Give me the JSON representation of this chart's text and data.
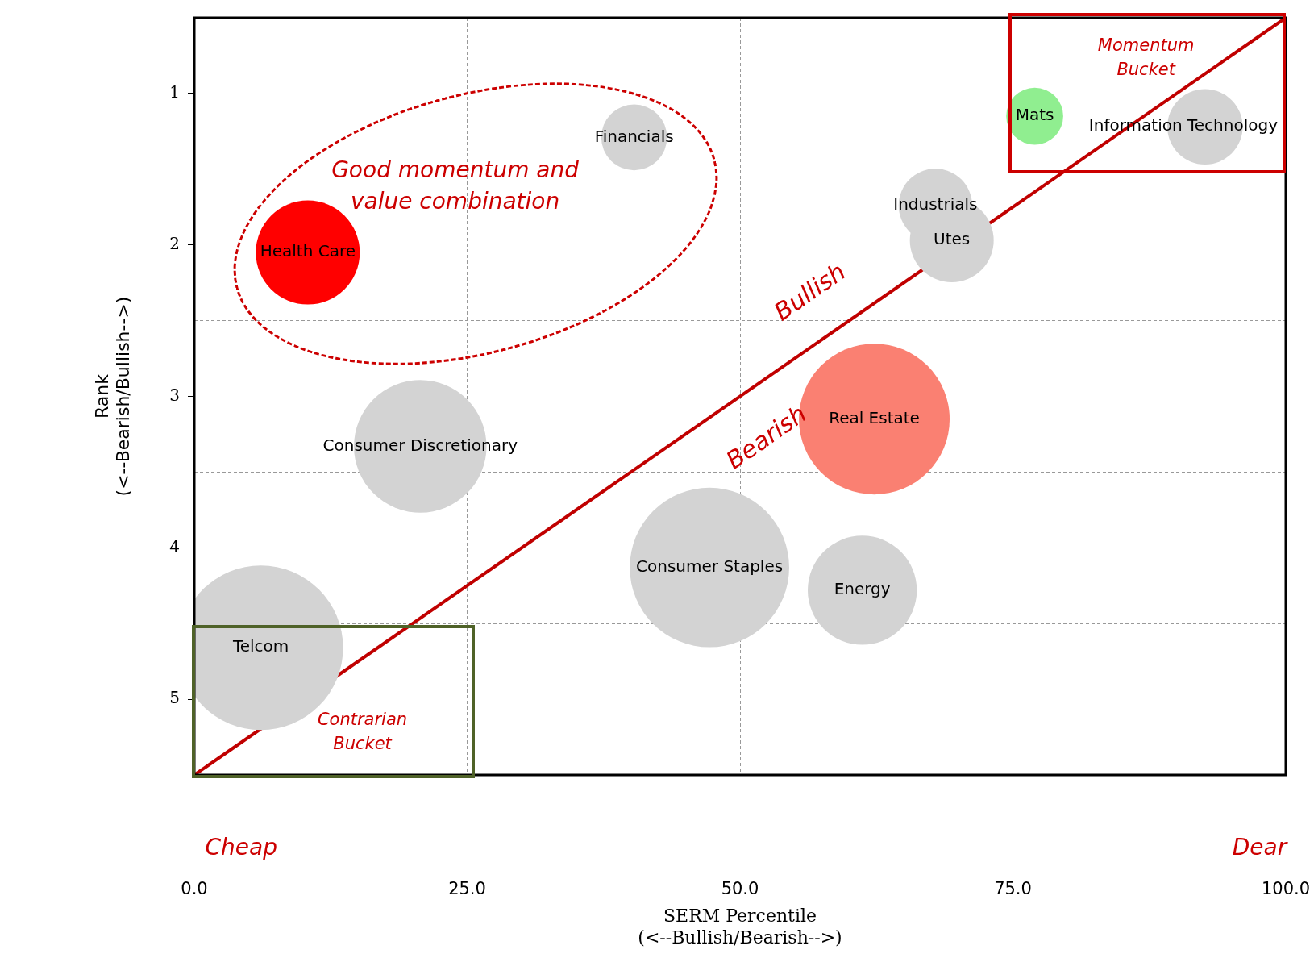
{
  "chart_data": {
    "type": "bubble",
    "xlabel": "SERM Percentile\n(<--Bullish/Bearish-->)",
    "ylabel": "Rank\n(<--Bearish/Bullish-->)",
    "xlim": [
      0,
      100
    ],
    "xticks": [
      {
        "value": 0,
        "label": "0.0"
      },
      {
        "value": 25,
        "label": "25.0"
      },
      {
        "value": 50,
        "label": "50.0"
      },
      {
        "value": 75,
        "label": "75.0"
      },
      {
        "value": 100,
        "label": "100.0"
      }
    ],
    "ylim": [
      5.5,
      0.5
    ],
    "yticks": [
      1,
      {
        "value": 1.5,
        "label": null
      },
      2,
      {
        "value": 2.5,
        "label": null
      },
      3,
      {
        "value": 3.5,
        "label": null
      },
      4,
      {
        "value": 4.5,
        "label": null
      },
      5
    ],
    "grid": true,
    "legend": false,
    "series": [
      {
        "name": "Financials",
        "color": "#d3d3d3",
        "x": [
          40.3
        ],
        "values": [
          1.29
        ],
        "sizes": [
          0.16
        ]
      },
      {
        "name": "Health Care",
        "color": "#ff0000",
        "x": [
          10.4
        ],
        "values": [
          2.05
        ],
        "sizes": [
          0.4
        ]
      },
      {
        "name": "Mats",
        "color": "#90ee90",
        "x": [
          77.0
        ],
        "values": [
          1.15
        ],
        "sizes": [
          0.12
        ]
      },
      {
        "name": "Information Technology",
        "color": "#d3d3d3",
        "x": [
          92.6
        ],
        "values": [
          1.22
        ],
        "sizes": [
          0.21
        ]
      },
      {
        "name": "Utes",
        "color": "#d3d3d3",
        "x": [
          69.4
        ],
        "values": [
          1.97
        ],
        "sizes": [
          0.26
        ]
      },
      {
        "name": "Industrials",
        "color": "#d3d3d3",
        "x": [
          67.9
        ],
        "values": [
          1.74
        ],
        "sizes": [
          0.2
        ]
      },
      {
        "name": "Real Estate",
        "color": "#fa8072",
        "x": [
          62.3
        ],
        "values": [
          3.15
        ],
        "sizes": [
          0.84
        ]
      },
      {
        "name": "Consumer Discretionary",
        "color": "#d3d3d3",
        "x": [
          20.7
        ],
        "values": [
          3.33
        ],
        "sizes": [
          0.65
        ]
      },
      {
        "name": "Consumer Staples",
        "color": "#d3d3d3",
        "x": [
          47.2
        ],
        "values": [
          4.13
        ],
        "sizes": [
          0.94
        ]
      },
      {
        "name": "Energy",
        "color": "#d3d3d3",
        "x": [
          61.2
        ],
        "values": [
          4.28
        ],
        "sizes": [
          0.44
        ]
      },
      {
        "name": "Telcom",
        "color": "#d3d3d3",
        "x": [
          6.1
        ],
        "values": [
          4.66
        ],
        "sizes": [
          1
        ]
      },
      {
        "type": "line",
        "color": "#c00000",
        "x": [
          0,
          100
        ],
        "values": [
          5.5,
          0.5
        ]
      }
    ],
    "annotations": [
      "Good momentum and value combination",
      "Bullish",
      "Bearish",
      "Momentum Bucket",
      "Contrarian Bucket",
      "Cheap",
      "Dear"
    ]
  }
}
